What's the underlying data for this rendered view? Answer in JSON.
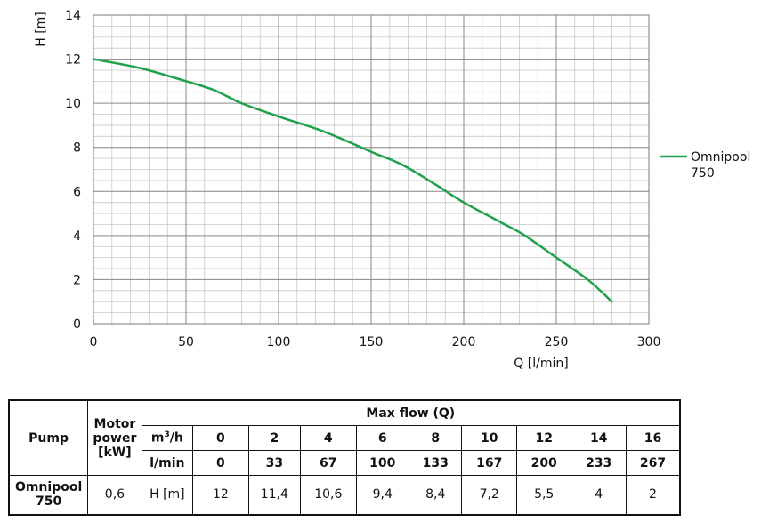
{
  "chart_data": {
    "type": "line",
    "xlabel": "Q [l/min]",
    "ylabel": "H [m]",
    "xlim": [
      0,
      300
    ],
    "ylim": [
      0,
      14
    ],
    "x_ticks": [
      0,
      50,
      100,
      150,
      200,
      250,
      300
    ],
    "y_ticks": [
      0,
      2,
      4,
      6,
      8,
      10,
      12,
      14
    ],
    "x_tick_labels": [
      "0",
      "50",
      "100",
      "150",
      "200",
      "250",
      "300"
    ],
    "y_tick_labels": [
      "0",
      "2",
      "4",
      "6",
      "8",
      "10",
      "12",
      "14"
    ],
    "grid": true,
    "legend_position": "right",
    "series": [
      {
        "name": "Omnipool 750",
        "color": "#1fa24a",
        "x": [
          0,
          25,
          50,
          65,
          80,
          100,
          125,
          150,
          167,
          185,
          200,
          220,
          233,
          250,
          267,
          280
        ],
        "y": [
          12,
          11.6,
          11.0,
          10.6,
          10.0,
          9.4,
          8.7,
          7.8,
          7.2,
          6.3,
          5.5,
          4.6,
          4.0,
          3.0,
          2.0,
          1.0
        ]
      }
    ]
  },
  "legend": {
    "line1": "Omnipool",
    "line2": "750"
  },
  "table": {
    "pump_header": "Pump",
    "motor_header_line1": "Motor",
    "motor_header_line2": "power",
    "motor_header_line3": "[kW]",
    "max_flow_header": "Max flow (Q)",
    "m3h_label_base": "m",
    "m3h_label_sup": "3",
    "m3h_label_rest": "/h",
    "lmin_label": "l/min",
    "m3h_values": [
      "0",
      "2",
      "4",
      "6",
      "8",
      "10",
      "12",
      "14",
      "16"
    ],
    "lmin_values": [
      "0",
      "33",
      "67",
      "100",
      "133",
      "167",
      "200",
      "233",
      "267"
    ],
    "pump_name_line1": "Omnipool",
    "pump_name_line2": "750",
    "motor_power": "0,6",
    "h_label": "H [m]",
    "h_values": [
      "12",
      "11,4",
      "10,6",
      "9,4",
      "8,4",
      "7,2",
      "5,5",
      "4",
      "2"
    ]
  }
}
